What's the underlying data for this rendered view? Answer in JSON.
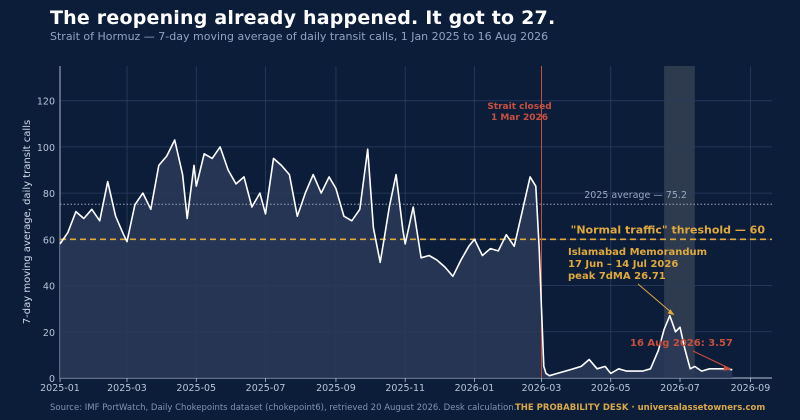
{
  "page": {
    "title": "The reopening already happened. It got to 27.",
    "subtitle": "Strait of Hormuz — 7-day moving average of daily transit calls, 1 Jan 2025 to 16 Aug 2026",
    "source": "Source: IMF PortWatch, Daily Chokepoints dataset (chokepoint6), retrieved 20 August 2026. Desk calculation.",
    "brand": "THE PROBABILITY DESK  ·  universalassetowners.com"
  },
  "colors": {
    "background": "#0c1d3a",
    "line": "#ffffff",
    "area": "#2a3a58",
    "threshold": "#e0a93c",
    "closure": "#c8503f",
    "average": "#9aa8c0",
    "shade": "#3a4656"
  },
  "chart_data": {
    "type": "line",
    "ylabel": "7-day moving average, daily transit calls",
    "xlim": [
      "2025-01-01",
      "2026-09-20"
    ],
    "ylim": [
      0,
      135
    ],
    "yticks": [
      0,
      20,
      40,
      60,
      80,
      100,
      120
    ],
    "yticklabels": [
      "0",
      "20",
      "40",
      "60",
      "80",
      "100",
      "120"
    ],
    "xticks": [
      "2025-01-01",
      "2025-03-01",
      "2025-05-01",
      "2025-07-01",
      "2025-09-01",
      "2025-11-01",
      "2026-01-01",
      "2026-03-01",
      "2026-05-01",
      "2026-07-01",
      "2026-09-01"
    ],
    "xticklabels": [
      "2025-01",
      "2025-03",
      "2025-05",
      "2025-07",
      "2025-09",
      "2025-11",
      "2026-01",
      "2026-03",
      "2026-05",
      "2026-07",
      "2026-09"
    ],
    "grid": true,
    "series": [
      {
        "x": [
          "2025-01-01",
          "2025-01-08",
          "2025-01-15",
          "2025-01-22",
          "2025-01-29",
          "2025-02-05",
          "2025-02-12",
          "2025-02-19",
          "2025-02-26",
          "2025-03-01",
          "2025-03-08",
          "2025-03-15",
          "2025-03-22",
          "2025-03-29",
          "2025-04-05",
          "2025-04-12",
          "2025-04-19",
          "2025-04-23",
          "2025-04-29",
          "2025-05-01",
          "2025-05-08",
          "2025-05-15",
          "2025-05-22",
          "2025-05-29",
          "2025-06-05",
          "2025-06-12",
          "2025-06-19",
          "2025-06-26",
          "2025-07-01",
          "2025-07-08",
          "2025-07-15",
          "2025-07-22",
          "2025-07-29",
          "2025-08-05",
          "2025-08-12",
          "2025-08-19",
          "2025-08-26",
          "2025-09-01",
          "2025-09-08",
          "2025-09-15",
          "2025-09-22",
          "2025-09-29",
          "2025-10-04",
          "2025-10-10",
          "2025-10-14",
          "2025-10-18",
          "2025-10-24",
          "2025-10-30",
          "2025-11-01",
          "2025-11-08",
          "2025-11-15",
          "2025-11-22",
          "2025-11-29",
          "2025-12-06",
          "2025-12-13",
          "2025-12-20",
          "2025-12-27",
          "2026-01-01",
          "2026-01-08",
          "2026-01-15",
          "2026-01-22",
          "2026-01-29",
          "2026-02-05",
          "2026-02-12",
          "2026-02-19",
          "2026-02-24",
          "2026-02-27",
          "2026-03-01",
          "2026-03-03",
          "2026-03-05",
          "2026-03-08",
          "2026-03-15",
          "2026-03-22",
          "2026-03-29",
          "2026-04-05",
          "2026-04-12",
          "2026-04-19",
          "2026-04-26",
          "2026-05-01",
          "2026-05-08",
          "2026-05-15",
          "2026-05-22",
          "2026-05-29",
          "2026-06-05",
          "2026-06-12",
          "2026-06-17",
          "2026-06-22",
          "2026-06-27",
          "2026-07-01",
          "2026-07-05",
          "2026-07-10",
          "2026-07-14",
          "2026-07-20",
          "2026-07-27",
          "2026-08-03",
          "2026-08-10",
          "2026-08-16"
        ],
        "values": [
          58,
          63,
          72,
          69,
          73,
          68,
          85,
          70,
          62,
          59,
          75,
          80,
          73,
          92,
          96,
          103,
          88,
          69,
          92,
          83,
          97,
          95,
          100,
          90,
          84,
          87,
          74,
          80,
          71,
          95,
          92,
          88,
          70,
          80,
          88,
          80,
          87,
          82,
          70,
          68,
          73,
          99,
          65,
          50,
          62,
          74,
          88,
          64,
          58,
          74,
          52,
          53,
          51,
          48,
          44,
          51,
          57,
          60,
          53,
          56,
          55,
          62,
          57,
          72,
          87,
          83,
          56,
          30,
          5,
          2,
          1,
          2,
          3,
          4,
          5,
          8,
          4,
          5,
          2,
          4,
          3,
          3,
          3,
          4,
          12,
          21,
          27,
          20,
          22,
          13,
          4,
          5,
          3,
          4,
          4,
          4,
          3.6
        ]
      }
    ],
    "annotations": {
      "closure_date": "2026-03-01",
      "closure_label_1": "Strait closed",
      "closure_label_2": "1 Mar 2026",
      "average_value": 75.2,
      "average_label": "2025 average — 75.2",
      "threshold_value": 60,
      "threshold_label": "\"Normal traffic\" threshold — 60",
      "memo_start": "2026-06-17",
      "memo_end": "2026-07-14",
      "memo_label_1": "Islamabad Memorandum",
      "memo_label_2": "17 Jun – 14 Jul 2026",
      "memo_label_3": "peak 7dMA 26.71",
      "memo_peak_date": "2026-06-27",
      "memo_peak_value": 26.71,
      "last_label": "16 Aug 2026: 3.57",
      "last_date": "2026-08-16",
      "last_value": 3.57
    }
  }
}
